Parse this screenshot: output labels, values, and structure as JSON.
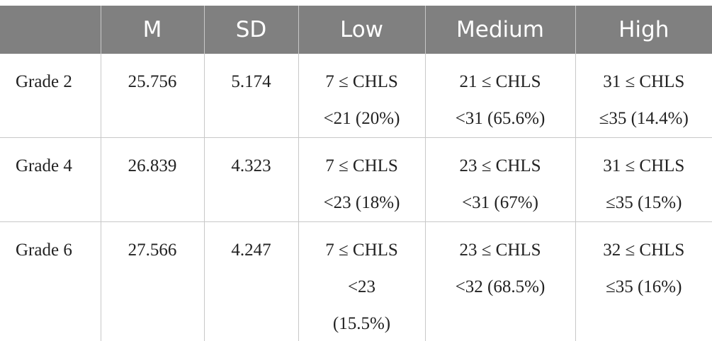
{
  "table": {
    "header": [
      "M",
      "SD",
      "Low",
      "Medium",
      "High"
    ],
    "rows": [
      [
        [
          "Grade 2"
        ],
        [
          "25.756"
        ],
        [
          "5.174"
        ],
        [
          "7 ≤ CHLS",
          "<21 (20%)"
        ],
        [
          "21 ≤ CHLS",
          "<31 (65.6%)"
        ],
        [
          "31 ≤ CHLS",
          "≤35 (14.4%)"
        ]
      ],
      [
        [
          "Grade 4"
        ],
        [
          "26.839"
        ],
        [
          "4.323"
        ],
        [
          "7 ≤ CHLS",
          "<23 (18%)"
        ],
        [
          "23 ≤ CHLS",
          "<31 (67%)"
        ],
        [
          "31 ≤ CHLS",
          "≤35 (15%)"
        ]
      ],
      [
        [
          "Grade 6"
        ],
        [
          "27.566"
        ],
        [
          "4.247"
        ],
        [
          "7 ≤ CHLS",
          "<23",
          "(15.5%)"
        ],
        [
          "23 ≤ CHLS",
          "<32 (68.5%)"
        ],
        [
          "32 ≤ CHLS",
          "≤35 (16%)"
        ]
      ]
    ]
  }
}
